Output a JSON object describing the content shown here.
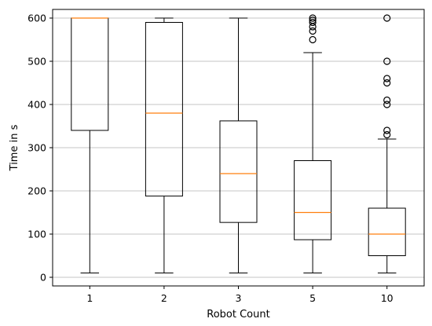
{
  "chart_data": {
    "type": "box",
    "title": "",
    "xlabel": "Robot Count",
    "ylabel": "Time in s",
    "ylim": [
      -20,
      620
    ],
    "yticks": [
      0,
      100,
      200,
      300,
      400,
      500,
      600
    ],
    "grid": "y",
    "categories": [
      "1",
      "2",
      "3",
      "5",
      "10"
    ],
    "boxes": [
      {
        "category": "1",
        "whisker_low": 10,
        "q1": 340,
        "median": 600,
        "q3": 600,
        "whisker_high": 600,
        "outliers": []
      },
      {
        "category": "2",
        "whisker_low": 10,
        "q1": 188,
        "median": 380,
        "q3": 590,
        "whisker_high": 600,
        "outliers": []
      },
      {
        "category": "3",
        "whisker_low": 10,
        "q1": 127,
        "median": 240,
        "q3": 362,
        "whisker_high": 600,
        "outliers": []
      },
      {
        "category": "5",
        "whisker_low": 10,
        "q1": 87,
        "median": 150,
        "q3": 270,
        "whisker_high": 520,
        "outliers": [
          550,
          570,
          580,
          590,
          595,
          600
        ]
      },
      {
        "category": "10",
        "whisker_low": 10,
        "q1": 50,
        "median": 100,
        "q3": 160,
        "whisker_high": 320,
        "outliers": [
          330,
          340,
          400,
          410,
          450,
          460,
          500,
          600
        ]
      }
    ],
    "colors": {
      "box": "#000000",
      "median": "#ff7f0e",
      "grid": "#b0b0b0"
    }
  }
}
